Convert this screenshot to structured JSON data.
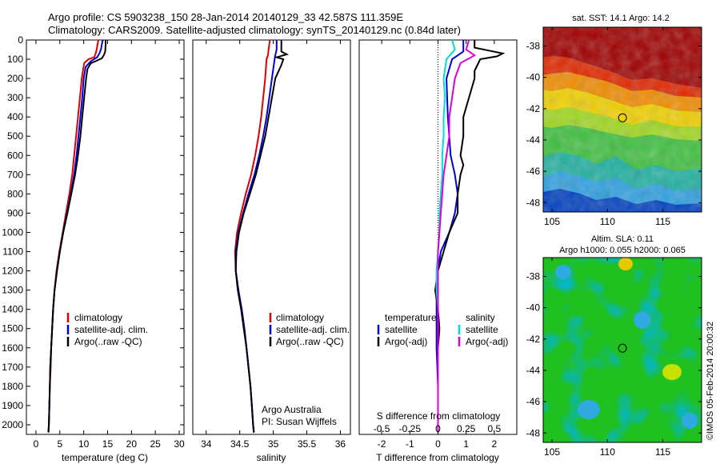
{
  "header": {
    "line1": "Argo profile: CS 5903238_150 28-Jan-2014 20140129_33 42.587S 111.359E",
    "line2": "Climatology: CARS2009. Satellite-adjusted climatology: synTS_20140129.nc (0.84d later)"
  },
  "chart_data": [
    {
      "type": "line",
      "xlabel": "temperature (deg C)",
      "xlim": [
        -2,
        31
      ],
      "ylim": [
        0,
        2050
      ],
      "xticks": [
        0,
        5,
        10,
        15,
        20,
        25,
        30
      ],
      "yticks": [
        0,
        100,
        200,
        300,
        400,
        500,
        600,
        700,
        800,
        900,
        1000,
        1100,
        1200,
        1300,
        1400,
        1500,
        1600,
        1700,
        1800,
        1900,
        2000
      ],
      "legend": [
        "climatology",
        "satellite-adj. clim.",
        "Argo(..raw -QC)"
      ],
      "series": [
        {
          "color": "#dd0000",
          "points": [
            [
              13.1,
              0
            ],
            [
              13.0,
              10
            ],
            [
              12.7,
              50
            ],
            [
              12.5,
              70
            ],
            [
              12.2,
              90
            ],
            [
              11.0,
              100
            ],
            [
              10.1,
              120
            ],
            [
              9.6,
              200
            ],
            [
              9.2,
              300
            ],
            [
              8.8,
              400
            ],
            [
              8.4,
              500
            ],
            [
              8.0,
              600
            ],
            [
              7.6,
              700
            ],
            [
              7.0,
              800
            ],
            [
              6.3,
              900
            ],
            [
              5.6,
              1000
            ],
            [
              4.9,
              1100
            ],
            [
              4.3,
              1200
            ],
            [
              3.9,
              1300
            ],
            [
              3.6,
              1400
            ],
            [
              3.4,
              1500
            ],
            [
              3.2,
              1600
            ],
            [
              3.1,
              1700
            ],
            [
              2.9,
              1800
            ],
            [
              2.8,
              1900
            ],
            [
              2.7,
              2000
            ],
            [
              2.6,
              2040
            ]
          ]
        },
        {
          "color": "#0000dd",
          "points": [
            [
              14.0,
              0
            ],
            [
              13.9,
              10
            ],
            [
              13.6,
              50
            ],
            [
              13.3,
              70
            ],
            [
              12.8,
              90
            ],
            [
              11.5,
              110
            ],
            [
              10.4,
              140
            ],
            [
              10.0,
              200
            ],
            [
              9.7,
              300
            ],
            [
              9.3,
              400
            ],
            [
              8.9,
              500
            ],
            [
              8.5,
              600
            ],
            [
              8.0,
              700
            ],
            [
              7.3,
              800
            ],
            [
              6.5,
              900
            ],
            [
              5.7,
              1000
            ],
            [
              5.0,
              1100
            ],
            [
              4.4,
              1200
            ],
            [
              3.9,
              1300
            ],
            [
              3.6,
              1400
            ],
            [
              3.4,
              1500
            ],
            [
              3.2,
              1600
            ],
            [
              3.0,
              1700
            ],
            [
              2.9,
              1800
            ],
            [
              2.8,
              1900
            ],
            [
              2.7,
              2000
            ],
            [
              2.6,
              2040
            ]
          ]
        },
        {
          "color": "#000000",
          "points": [
            [
              14.6,
              0
            ],
            [
              14.6,
              20
            ],
            [
              14.5,
              60
            ],
            [
              14.2,
              80
            ],
            [
              13.8,
              95
            ],
            [
              12.5,
              110
            ],
            [
              11.5,
              120
            ],
            [
              10.8,
              150
            ],
            [
              10.5,
              200
            ],
            [
              10.1,
              300
            ],
            [
              9.7,
              400
            ],
            [
              9.3,
              500
            ],
            [
              8.8,
              600
            ],
            [
              8.2,
              700
            ],
            [
              7.4,
              800
            ],
            [
              6.6,
              900
            ],
            [
              5.7,
              1000
            ],
            [
              5.0,
              1100
            ],
            [
              4.4,
              1200
            ],
            [
              3.9,
              1300
            ],
            [
              3.6,
              1400
            ],
            [
              3.4,
              1500
            ],
            [
              3.2,
              1600
            ],
            [
              3.0,
              1700
            ],
            [
              2.9,
              1800
            ],
            [
              2.8,
              1900
            ],
            [
              2.7,
              2000
            ],
            [
              2.6,
              2040
            ]
          ]
        }
      ]
    },
    {
      "type": "line",
      "xlabel": "salinity",
      "xlim": [
        33.8,
        36.15
      ],
      "ylim": [
        0,
        2050
      ],
      "xticks": [
        34,
        34.5,
        35,
        35.5,
        36
      ],
      "legend": [
        "climatology",
        "satellite-adj. clim.",
        "Argo(..raw -QC)"
      ],
      "annotations": [
        "Argo Australia",
        "PI: Susan Wijffels"
      ],
      "series": [
        {
          "color": "#dd0000",
          "points": [
            [
              34.95,
              0
            ],
            [
              34.93,
              50
            ],
            [
              34.92,
              80
            ],
            [
              34.9,
              100
            ],
            [
              34.88,
              200
            ],
            [
              34.85,
              300
            ],
            [
              34.82,
              400
            ],
            [
              34.78,
              500
            ],
            [
              34.73,
              600
            ],
            [
              34.67,
              700
            ],
            [
              34.59,
              800
            ],
            [
              34.52,
              900
            ],
            [
              34.46,
              1000
            ],
            [
              34.43,
              1100
            ],
            [
              34.44,
              1200
            ],
            [
              34.48,
              1300
            ],
            [
              34.53,
              1400
            ],
            [
              34.57,
              1500
            ],
            [
              34.6,
              1600
            ],
            [
              34.63,
              1700
            ],
            [
              34.66,
              1800
            ],
            [
              34.68,
              1900
            ],
            [
              34.7,
              2000
            ],
            [
              34.71,
              2040
            ]
          ]
        },
        {
          "color": "#0000dd",
          "points": [
            [
              35.05,
              0
            ],
            [
              35.05,
              50
            ],
            [
              35.03,
              80
            ],
            [
              35.02,
              100
            ],
            [
              34.98,
              200
            ],
            [
              34.94,
              300
            ],
            [
              34.9,
              400
            ],
            [
              34.85,
              500
            ],
            [
              34.79,
              600
            ],
            [
              34.72,
              700
            ],
            [
              34.63,
              800
            ],
            [
              34.55,
              900
            ],
            [
              34.48,
              1000
            ],
            [
              34.44,
              1100
            ],
            [
              34.44,
              1200
            ],
            [
              34.48,
              1300
            ],
            [
              34.53,
              1400
            ],
            [
              34.57,
              1500
            ],
            [
              34.6,
              1600
            ],
            [
              34.63,
              1700
            ],
            [
              34.66,
              1800
            ],
            [
              34.68,
              1900
            ],
            [
              34.7,
              2000
            ],
            [
              34.71,
              2040
            ]
          ]
        },
        {
          "color": "#000000",
          "points": [
            [
              35.12,
              0
            ],
            [
              35.12,
              60
            ],
            [
              35.2,
              75
            ],
            [
              35.05,
              90
            ],
            [
              35.15,
              100
            ],
            [
              35.12,
              130
            ],
            [
              35.03,
              200
            ],
            [
              34.98,
              300
            ],
            [
              34.93,
              400
            ],
            [
              34.88,
              500
            ],
            [
              34.81,
              600
            ],
            [
              34.74,
              700
            ],
            [
              34.65,
              800
            ],
            [
              34.56,
              900
            ],
            [
              34.49,
              1000
            ],
            [
              34.45,
              1100
            ],
            [
              34.44,
              1200
            ],
            [
              34.47,
              1300
            ],
            [
              34.52,
              1400
            ],
            [
              34.56,
              1500
            ],
            [
              34.6,
              1600
            ],
            [
              34.63,
              1700
            ],
            [
              34.66,
              1800
            ],
            [
              34.68,
              1900
            ],
            [
              34.7,
              2000
            ],
            [
              34.71,
              2040
            ]
          ]
        }
      ]
    },
    {
      "type": "line",
      "xlabel": "T difference from climatology",
      "x2label": "S difference from climatology",
      "xlim": [
        -2.8,
        2.8
      ],
      "ylim": [
        0,
        2050
      ],
      "xticks": [
        -2,
        -1,
        0,
        1,
        2
      ],
      "x2ticks": [
        "-0.5",
        "-0.25",
        "0",
        "0.25",
        "0.5"
      ],
      "legend_left": [
        "temperature",
        "satellite",
        "Argo(-adj)"
      ],
      "legend_right": [
        "salinity",
        "satellite",
        "Argo(-adj)"
      ],
      "series": [
        {
          "color": "#0000dd",
          "points": [
            [
              0.9,
              0
            ],
            [
              0.9,
              60
            ],
            [
              0.5,
              100
            ],
            [
              0.3,
              200
            ],
            [
              0.35,
              400
            ],
            [
              0.45,
              600
            ],
            [
              0.6,
              700
            ],
            [
              0.7,
              800
            ],
            [
              0.6,
              900
            ],
            [
              0.4,
              1000
            ],
            [
              0.1,
              1100
            ],
            [
              0.0,
              1200
            ],
            [
              -0.05,
              1300
            ],
            [
              -0.05,
              1400
            ],
            [
              -0.05,
              1600
            ],
            [
              0.0,
              1800
            ],
            [
              0.0,
              2040
            ]
          ]
        },
        {
          "color": "#000000",
          "points": [
            [
              1.3,
              0
            ],
            [
              1.3,
              40
            ],
            [
              2.3,
              70
            ],
            [
              2.1,
              85
            ],
            [
              1.5,
              100
            ],
            [
              1.3,
              160
            ],
            [
              1.3,
              200
            ],
            [
              1.1,
              300
            ],
            [
              0.9,
              400
            ],
            [
              0.9,
              500
            ],
            [
              0.8,
              600
            ],
            [
              0.9,
              650
            ],
            [
              0.8,
              700
            ],
            [
              0.7,
              800
            ],
            [
              0.7,
              900
            ],
            [
              0.4,
              1000
            ],
            [
              0.2,
              1100
            ],
            [
              0.0,
              1200
            ],
            [
              -0.1,
              1300
            ],
            [
              0.0,
              1400
            ],
            [
              0.05,
              1500
            ],
            [
              0.0,
              1600
            ],
            [
              0.0,
              1700
            ],
            [
              0.0,
              1800
            ],
            [
              0.0,
              2040
            ]
          ]
        },
        {
          "color": "#00dddd",
          "points": [
            [
              0.5,
              0
            ],
            [
              0.6,
              50
            ],
            [
              0.3,
              100
            ],
            [
              0.2,
              200
            ],
            [
              0.25,
              300
            ],
            [
              0.2,
              400
            ],
            [
              0.2,
              500
            ],
            [
              0.15,
              600
            ],
            [
              0.15,
              700
            ],
            [
              0.1,
              800
            ],
            [
              0.05,
              900
            ],
            [
              0.05,
              1000
            ],
            [
              0.0,
              1100
            ],
            [
              -0.05,
              1200
            ],
            [
              -0.05,
              1300
            ],
            [
              0.0,
              1400
            ],
            [
              0.0,
              1500
            ],
            [
              0.0,
              1600
            ],
            [
              0.0,
              2040
            ]
          ]
        },
        {
          "color": "#dd00dd",
          "points": [
            [
              1.1,
              0
            ],
            [
              1.0,
              50
            ],
            [
              1.3,
              80
            ],
            [
              0.8,
              120
            ],
            [
              0.6,
              200
            ],
            [
              0.5,
              300
            ],
            [
              0.4,
              400
            ],
            [
              0.4,
              500
            ],
            [
              0.3,
              600
            ],
            [
              0.2,
              700
            ],
            [
              0.15,
              800
            ],
            [
              0.1,
              900
            ],
            [
              0.05,
              1000
            ],
            [
              0.0,
              1100
            ],
            [
              0.0,
              1200
            ],
            [
              0.0,
              1900
            ],
            [
              0.0,
              2040
            ]
          ]
        }
      ]
    },
    {
      "type": "heatmap",
      "title": "sat. SST: 14.1  Argo: 14.2",
      "xlim": [
        104.2,
        118.5
      ],
      "ylim": [
        -48.6,
        -36.8
      ],
      "xticks": [
        105,
        110,
        115
      ],
      "yticks": [
        -38,
        -40,
        -42,
        -44,
        -46,
        -48
      ],
      "marker": [
        111.359,
        -42.587
      ]
    },
    {
      "type": "heatmap",
      "title": "Altim. SLA: 0.11",
      "subtitle": "Argo h1000: 0.055 h2000: 0.065",
      "xlim": [
        104.2,
        118.5
      ],
      "ylim": [
        -48.6,
        -36.8
      ],
      "xticks": [
        105,
        110,
        115
      ],
      "yticks": [
        -38,
        -40,
        -42,
        -44,
        -46,
        -48
      ],
      "marker": [
        111.359,
        -42.587
      ]
    }
  ],
  "footer": {
    "credit": "©IMOS 05-Feb-2014 20:00:32"
  },
  "colors": {
    "climatology": "#dd0000",
    "satellite": "#0000dd",
    "argo": "#000000",
    "sat_salinity": "#00dddd",
    "argo_salinity": "#dd00dd"
  }
}
